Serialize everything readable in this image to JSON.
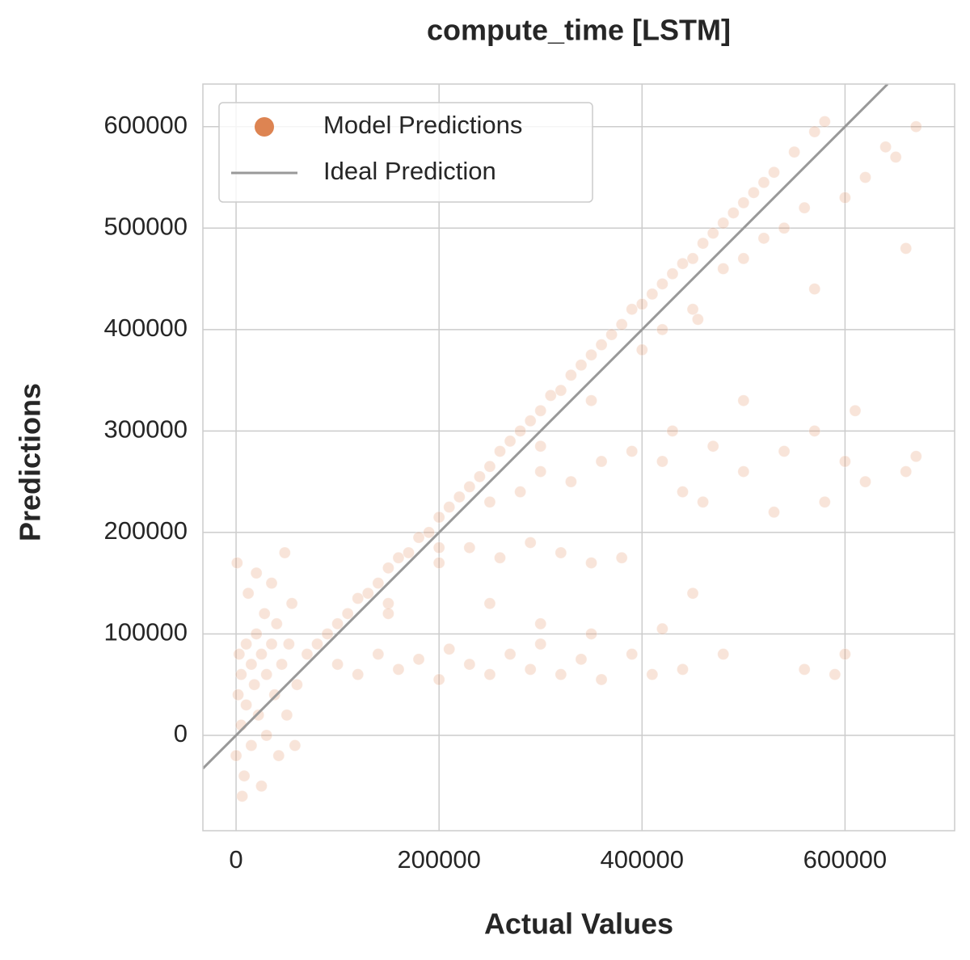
{
  "chart_data": {
    "type": "scatter",
    "title": "compute_time [LSTM]",
    "x_label": "Actual Values",
    "y_label": "Predictions",
    "xlim": [
      -32700,
      708000
    ],
    "ylim": [
      -94000,
      642000
    ],
    "xticks": [
      0,
      200000,
      400000,
      600000
    ],
    "yticks": [
      0,
      100000,
      200000,
      300000,
      400000,
      500000,
      600000
    ],
    "grid": true,
    "legend": "upper left",
    "series": [
      {
        "name": "Model Predictions",
        "color": "#dd8452",
        "type": "scatter",
        "x": [
          0,
          2000,
          3000,
          5000,
          5000,
          8000,
          10000,
          10000,
          12000,
          15000,
          15000,
          18000,
          20000,
          20000,
          22000,
          25000,
          25000,
          28000,
          30000,
          30000,
          35000,
          35000,
          38000,
          40000,
          42000,
          45000,
          48000,
          50000,
          52000,
          55000,
          58000,
          60000,
          1000,
          6000,
          70000,
          80000,
          90000,
          100000,
          110000,
          120000,
          130000,
          140000,
          150000,
          160000,
          170000,
          180000,
          190000,
          200000,
          210000,
          220000,
          230000,
          240000,
          250000,
          260000,
          270000,
          280000,
          290000,
          300000,
          310000,
          320000,
          330000,
          340000,
          350000,
          360000,
          370000,
          380000,
          390000,
          400000,
          410000,
          420000,
          430000,
          440000,
          450000,
          460000,
          470000,
          480000,
          490000,
          500000,
          510000,
          520000,
          530000,
          550000,
          570000,
          580000,
          150000,
          200000,
          250000,
          300000,
          350000,
          400000,
          420000,
          450000,
          480000,
          500000,
          520000,
          540000,
          560000,
          600000,
          620000,
          650000,
          670000,
          640000,
          100000,
          120000,
          140000,
          160000,
          180000,
          200000,
          210000,
          230000,
          250000,
          270000,
          290000,
          300000,
          320000,
          340000,
          360000,
          390000,
          410000,
          440000,
          480000,
          560000,
          600000,
          590000,
          200000,
          230000,
          260000,
          290000,
          320000,
          350000,
          380000,
          150000,
          250000,
          300000,
          350000,
          420000,
          450000,
          280000,
          300000,
          330000,
          360000,
          390000,
          420000,
          440000,
          460000,
          500000,
          540000,
          570000,
          600000,
          620000,
          660000,
          670000,
          530000,
          470000,
          580000,
          610000,
          500000,
          430000,
          660000,
          570000,
          455000
        ],
        "values": [
          -20000,
          40000,
          80000,
          10000,
          60000,
          -40000,
          90000,
          30000,
          140000,
          70000,
          -10000,
          50000,
          100000,
          160000,
          20000,
          80000,
          -50000,
          120000,
          60000,
          0,
          90000,
          150000,
          40000,
          110000,
          -20000,
          70000,
          180000,
          20000,
          90000,
          130000,
          -10000,
          50000,
          170000,
          -60000,
          80000,
          90000,
          100000,
          110000,
          120000,
          135000,
          140000,
          150000,
          165000,
          175000,
          180000,
          195000,
          200000,
          215000,
          225000,
          235000,
          245000,
          255000,
          265000,
          280000,
          290000,
          300000,
          310000,
          320000,
          335000,
          340000,
          355000,
          365000,
          375000,
          385000,
          395000,
          405000,
          420000,
          425000,
          435000,
          445000,
          455000,
          465000,
          470000,
          485000,
          495000,
          505000,
          515000,
          525000,
          535000,
          545000,
          555000,
          575000,
          595000,
          605000,
          130000,
          185000,
          230000,
          285000,
          330000,
          380000,
          400000,
          420000,
          460000,
          470000,
          490000,
          500000,
          520000,
          530000,
          550000,
          570000,
          600000,
          580000,
          70000,
          60000,
          80000,
          65000,
          75000,
          55000,
          85000,
          70000,
          60000,
          80000,
          65000,
          90000,
          60000,
          75000,
          55000,
          80000,
          60000,
          65000,
          80000,
          65000,
          80000,
          60000,
          170000,
          185000,
          175000,
          190000,
          180000,
          170000,
          175000,
          120000,
          130000,
          110000,
          100000,
          105000,
          140000,
          240000,
          260000,
          250000,
          270000,
          280000,
          270000,
          240000,
          230000,
          260000,
          280000,
          300000,
          270000,
          250000,
          260000,
          275000,
          220000,
          285000,
          230000,
          320000,
          330000,
          300000,
          480000,
          440000,
          410000
        ]
      },
      {
        "name": "Ideal Prediction",
        "color": "#999999",
        "type": "line",
        "x": [
          -32700,
          642000
        ],
        "values": [
          -32700,
          642000
        ]
      }
    ]
  }
}
